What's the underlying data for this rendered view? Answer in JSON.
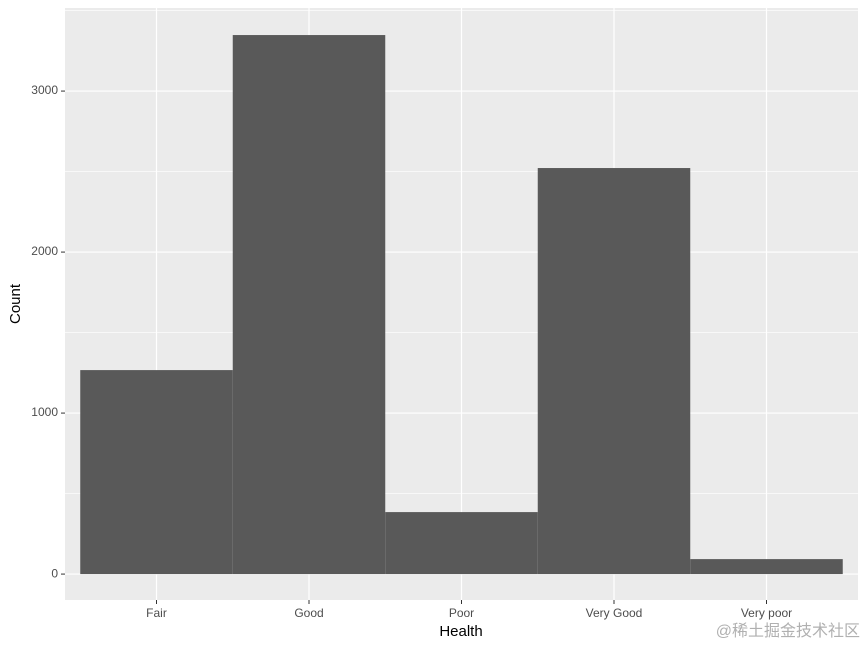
{
  "chart_data": {
    "type": "bar",
    "categories": [
      "Fair",
      "Good",
      "Poor",
      "Very Good",
      "Very poor"
    ],
    "values": [
      1267,
      3348,
      385,
      2522,
      93
    ],
    "color": "#595959",
    "xlabel": "Health",
    "ylabel": "Count",
    "ylim": [
      -161,
      3516
    ],
    "yticks": [
      0,
      1000,
      2000,
      3000
    ],
    "minor_yticks": [
      500,
      1500,
      2500,
      3500
    ],
    "grid": true,
    "watermark": "@稀土掘金技术社区"
  }
}
